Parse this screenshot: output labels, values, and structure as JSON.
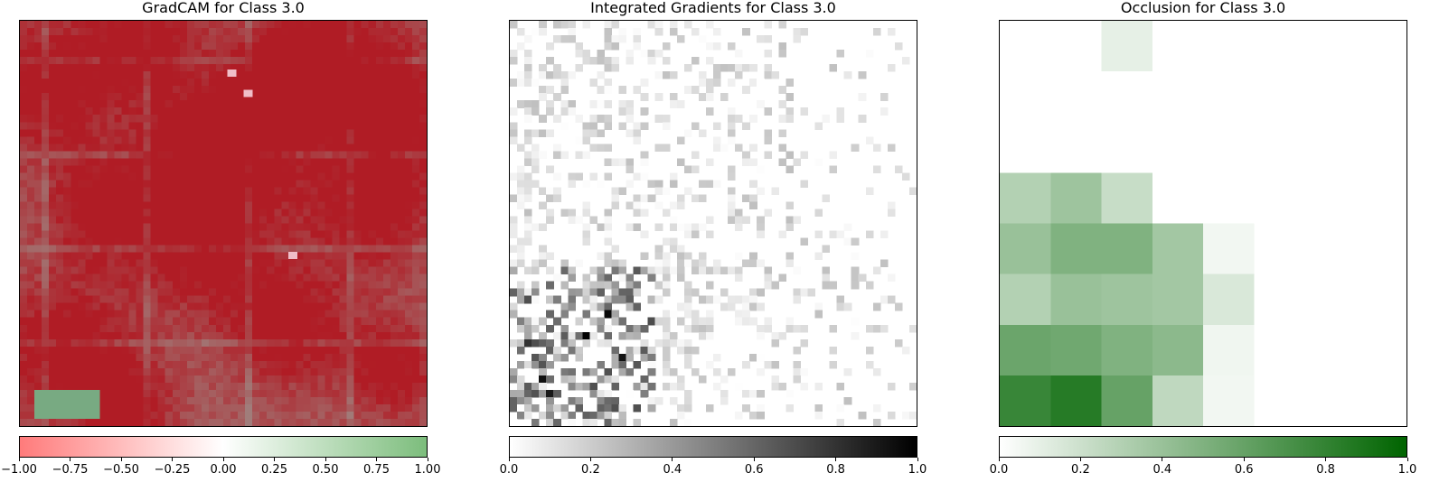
{
  "chart_data": [
    {
      "type": "heatmap",
      "title": "GradCAM for Class 3.0",
      "grid": false,
      "colorbar": {
        "range": [
          -1.0,
          1.0
        ],
        "colors": [
          "#ff7b7b",
          "#ffffff",
          "#7cbd7c"
        ],
        "ticks": [
          "−1.00",
          "−0.75",
          "−0.50",
          "−0.25",
          "0.00",
          "0.25",
          "0.50",
          "0.75",
          "1.00"
        ]
      },
      "overlay_color": "#b01c25",
      "base_color": "#9aa39c"
    },
    {
      "type": "heatmap",
      "title": "Integrated Gradients for Class 3.0",
      "grid": false,
      "colorbar": {
        "range": [
          0.0,
          1.0
        ],
        "colors": [
          "#ffffff",
          "#000000"
        ],
        "ticks": [
          "0.0",
          "0.2",
          "0.4",
          "0.6",
          "0.8",
          "1.0"
        ]
      }
    },
    {
      "type": "heatmap",
      "title": "Occlusion for Class 3.0",
      "grid": false,
      "colorbar": {
        "range": [
          0.0,
          1.0
        ],
        "colors": [
          "#ffffff",
          "#006400"
        ],
        "ticks": [
          "0.0",
          "0.2",
          "0.4",
          "0.6",
          "0.8",
          "1.0"
        ]
      },
      "cells": [
        {
          "row": 0,
          "col": 2,
          "value": 0.1
        },
        {
          "row": 3,
          "col": 0,
          "value": 0.3
        },
        {
          "row": 3,
          "col": 1,
          "value": 0.38
        },
        {
          "row": 3,
          "col": 2,
          "value": 0.22
        },
        {
          "row": 4,
          "col": 0,
          "value": 0.4
        },
        {
          "row": 4,
          "col": 1,
          "value": 0.5
        },
        {
          "row": 4,
          "col": 2,
          "value": 0.5
        },
        {
          "row": 4,
          "col": 3,
          "value": 0.36
        },
        {
          "row": 4,
          "col": 4,
          "value": 0.05
        },
        {
          "row": 5,
          "col": 0,
          "value": 0.3
        },
        {
          "row": 5,
          "col": 1,
          "value": 0.4
        },
        {
          "row": 5,
          "col": 2,
          "value": 0.38
        },
        {
          "row": 5,
          "col": 3,
          "value": 0.36
        },
        {
          "row": 5,
          "col": 4,
          "value": 0.15
        },
        {
          "row": 6,
          "col": 0,
          "value": 0.58
        },
        {
          "row": 6,
          "col": 1,
          "value": 0.56
        },
        {
          "row": 6,
          "col": 2,
          "value": 0.5
        },
        {
          "row": 6,
          "col": 3,
          "value": 0.45
        },
        {
          "row": 6,
          "col": 4,
          "value": 0.06
        },
        {
          "row": 7,
          "col": 0,
          "value": 0.78
        },
        {
          "row": 7,
          "col": 1,
          "value": 0.85
        },
        {
          "row": 7,
          "col": 2,
          "value": 0.6
        },
        {
          "row": 7,
          "col": 3,
          "value": 0.25
        },
        {
          "row": 7,
          "col": 4,
          "value": 0.05
        }
      ]
    }
  ]
}
